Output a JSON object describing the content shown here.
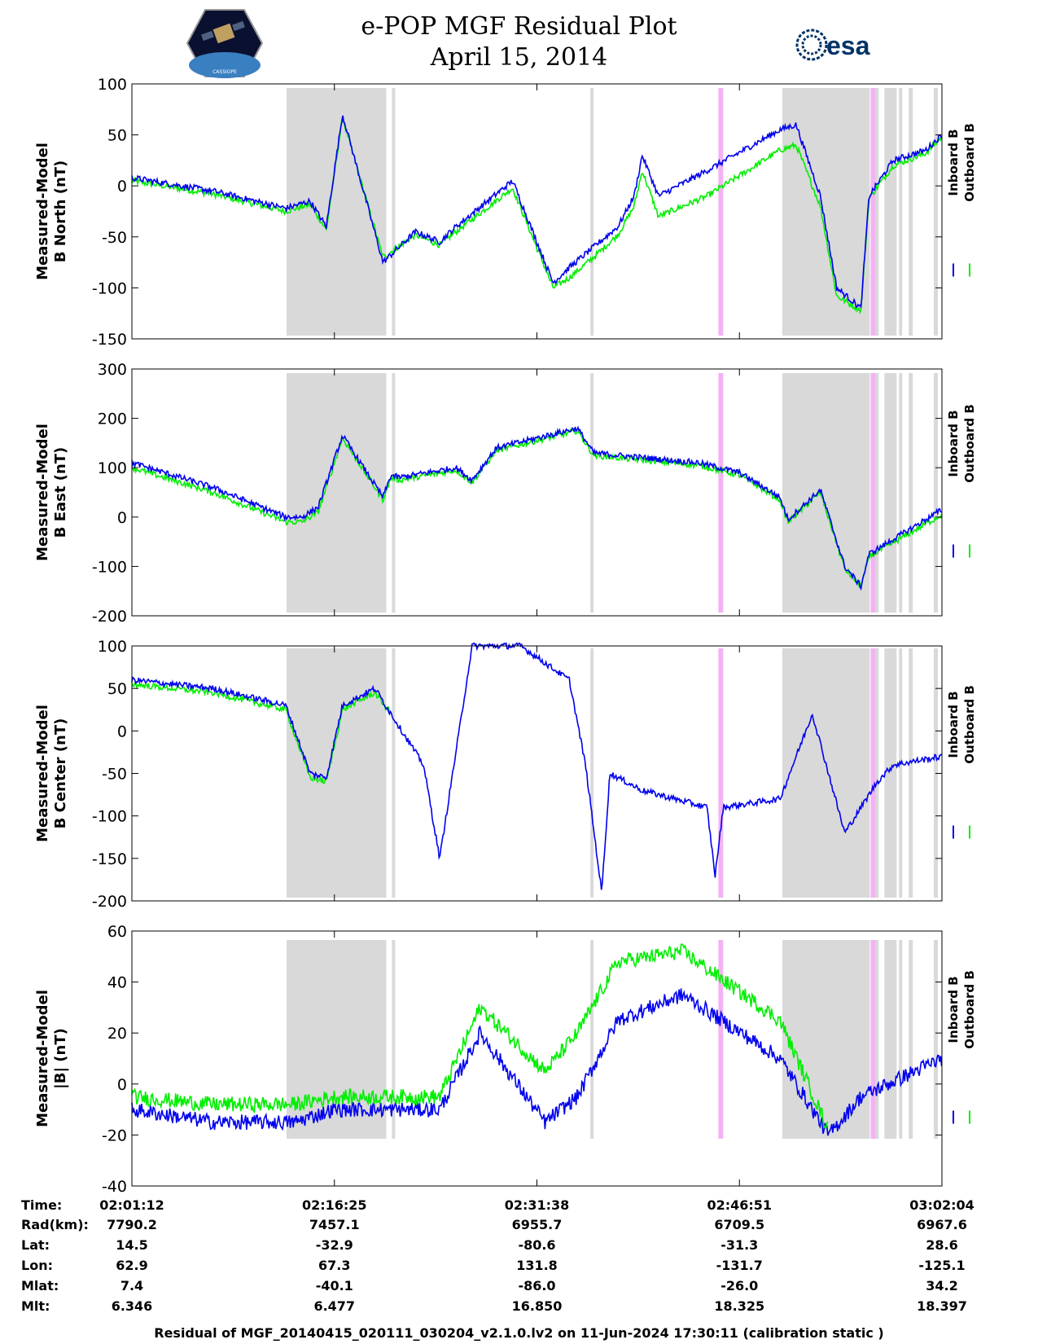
{
  "title_line1": "e-POP MGF Residual Plot",
  "title_line2": "April 15, 2014",
  "logo_left_text": "CASSIOPE",
  "logo_right_text": "esa",
  "colors": {
    "inboard": "#0000ee",
    "outboard": "#00ee00",
    "shade": "#d9d9d9",
    "pink": "#f0a0f0"
  },
  "legend": {
    "inboard": "Inboard B",
    "outboard": "Outboard B"
  },
  "chart_data": [
    {
      "type": "line",
      "ylabel_line1": "Measured-Model",
      "ylabel_line2": "B North (nT)",
      "ylim": [
        -150,
        100
      ],
      "yticks": [
        "100",
        "50",
        "0",
        "-50",
        "-100",
        "-150"
      ],
      "ytick_values": [
        100,
        50,
        0,
        -50,
        -100,
        -150
      ],
      "series": [
        {
          "name": "Inboard B",
          "x": [
            0,
            10,
            19,
            22,
            24,
            26,
            31,
            35,
            38,
            40,
            47,
            52,
            54,
            57,
            60,
            62,
            63,
            65,
            71,
            80,
            82,
            85,
            87,
            90,
            91,
            94,
            98,
            100
          ],
          "values": [
            8,
            -5,
            -22,
            -15,
            -40,
            70,
            -75,
            -45,
            -55,
            -40,
            5,
            -95,
            -80,
            -60,
            -40,
            -10,
            30,
            -10,
            15,
            55,
            60,
            -10,
            -100,
            -120,
            -10,
            25,
            35,
            50
          ]
        },
        {
          "name": "Outboard B",
          "x": [
            0,
            10,
            19,
            22,
            24,
            26,
            31,
            35,
            38,
            40,
            47,
            52,
            54,
            57,
            60,
            62,
            63,
            65,
            71,
            80,
            82,
            85,
            87,
            90,
            91,
            94,
            98,
            100
          ],
          "values": [
            5,
            -8,
            -25,
            -18,
            -43,
            67,
            -70,
            -48,
            -58,
            -45,
            -2,
            -100,
            -90,
            -70,
            -48,
            -20,
            15,
            -30,
            -10,
            35,
            40,
            -20,
            -108,
            -122,
            -12,
            20,
            32,
            48
          ]
        }
      ]
    },
    {
      "type": "line",
      "ylabel_line1": "Measured-Model",
      "ylabel_line2": "B East (nT)",
      "ylim": [
        -200,
        300
      ],
      "yticks": [
        "300",
        "200",
        "100",
        "0",
        "-100",
        "-200"
      ],
      "ytick_values": [
        300,
        200,
        100,
        0,
        -100,
        -200
      ],
      "series": [
        {
          "name": "Inboard B",
          "x": [
            0,
            10,
            19,
            21,
            23,
            26,
            31,
            32,
            33,
            40,
            42,
            45,
            55,
            57,
            60,
            70,
            75,
            80,
            81,
            85,
            88,
            90,
            91,
            100
          ],
          "values": [
            110,
            60,
            0,
            0,
            20,
            165,
            40,
            85,
            80,
            100,
            75,
            140,
            180,
            130,
            125,
            110,
            90,
            40,
            -5,
            55,
            -100,
            -140,
            -75,
            15
          ]
        },
        {
          "name": "Outboard B",
          "x": [
            0,
            10,
            19,
            21,
            23,
            26,
            31,
            32,
            33,
            40,
            42,
            45,
            55,
            57,
            60,
            70,
            75,
            80,
            81,
            85,
            88,
            90,
            91,
            100
          ],
          "values": [
            100,
            50,
            -10,
            -10,
            10,
            160,
            35,
            80,
            75,
            95,
            70,
            135,
            175,
            125,
            120,
            105,
            85,
            35,
            -10,
            50,
            -105,
            -140,
            -80,
            5
          ]
        }
      ]
    },
    {
      "type": "line",
      "ylabel_line1": "Measured-Model",
      "ylabel_line2": "B Center (nT)",
      "ylim": [
        -200,
        100
      ],
      "yticks": [
        "100",
        "50",
        "0",
        "-50",
        "-100",
        "-150",
        "-200"
      ],
      "ytick_values": [
        100,
        50,
        0,
        -50,
        -100,
        -150,
        -200
      ],
      "series": [
        {
          "name": "Inboard B",
          "x": [
            0,
            10,
            19,
            22,
            24,
            26,
            30,
            32,
            36,
            38,
            42,
            48,
            54,
            56,
            58,
            59,
            63,
            71,
            72,
            73,
            80,
            84,
            88,
            92,
            94,
            100
          ],
          "values": [
            60,
            50,
            30,
            -50,
            -55,
            30,
            50,
            20,
            -40,
            -150,
            100,
            100,
            60,
            -40,
            -190,
            -50,
            -70,
            -90,
            -170,
            -90,
            -80,
            20,
            -120,
            -60,
            -40,
            -30
          ]
        },
        {
          "name": "Outboard B",
          "x": [
            0,
            10,
            19,
            22,
            24,
            26,
            30,
            32
          ],
          "values": [
            55,
            45,
            25,
            -55,
            -60,
            25,
            45,
            20
          ]
        }
      ]
    },
    {
      "type": "line",
      "ylabel_line1": "Measured-Model",
      "ylabel_line2": "|B| (nT)",
      "ylim": [
        -40,
        60
      ],
      "yticks": [
        "60",
        "40",
        "20",
        "0",
        "-20",
        "-40"
      ],
      "ytick_values": [
        60,
        40,
        20,
        0,
        -20,
        -40
      ],
      "series": [
        {
          "name": "Inboard B",
          "x": [
            0,
            10,
            20,
            25,
            38,
            43,
            51,
            55,
            60,
            68,
            80,
            86,
            90,
            100
          ],
          "values": [
            -10,
            -15,
            -15,
            -10,
            -10,
            20,
            -15,
            -5,
            25,
            35,
            10,
            -20,
            -5,
            10
          ]
        },
        {
          "name": "Outboard B",
          "x": [
            0,
            10,
            20,
            25,
            38,
            43,
            51,
            55,
            60,
            68,
            80,
            86
          ],
          "values": [
            -5,
            -8,
            -8,
            -5,
            -5,
            30,
            5,
            20,
            48,
            52,
            25,
            -18
          ]
        }
      ]
    }
  ],
  "x_ticks": [
    "02:01:12",
    "02:16:25",
    "02:31:38",
    "02:46:51",
    "03:02:04"
  ],
  "shade_regions": [
    [
      19.1,
      31.4
    ],
    [
      32.1,
      32.5
    ],
    [
      56.6,
      57.0
    ],
    [
      80.3,
      91.1
    ],
    [
      91.8,
      92.2
    ],
    [
      92.9,
      94.4
    ],
    [
      94.7,
      95.1
    ],
    [
      95.9,
      96.4
    ],
    [
      99.0,
      99.5
    ]
  ],
  "pink_regions": [
    [
      72.4,
      73.0
    ],
    [
      91.2,
      91.8
    ]
  ],
  "table": {
    "labels": [
      "Time:",
      "Rad(km):",
      "Lat:",
      "Lon:",
      "Mlat:",
      "Mlt:"
    ],
    "columns": [
      [
        "02:01:12",
        "7790.2",
        "14.5",
        "62.9",
        "7.4",
        "6.346"
      ],
      [
        "02:16:25",
        "7457.1",
        "-32.9",
        "67.3",
        "-40.1",
        "6.477"
      ],
      [
        "02:31:38",
        "6955.7",
        "-80.6",
        "131.8",
        "-86.0",
        "16.850"
      ],
      [
        "02:46:51",
        "6709.5",
        "-31.3",
        "-131.7",
        "-26.0",
        "18.325"
      ],
      [
        "03:02:04",
        "6967.6",
        "28.6",
        "-125.1",
        "34.2",
        "18.397"
      ]
    ]
  },
  "footer": "Residual of MGF_20140415_020111_030204_v2.1.0.lv2 on 11-Jun-2024 17:30:11 (calibration static )"
}
